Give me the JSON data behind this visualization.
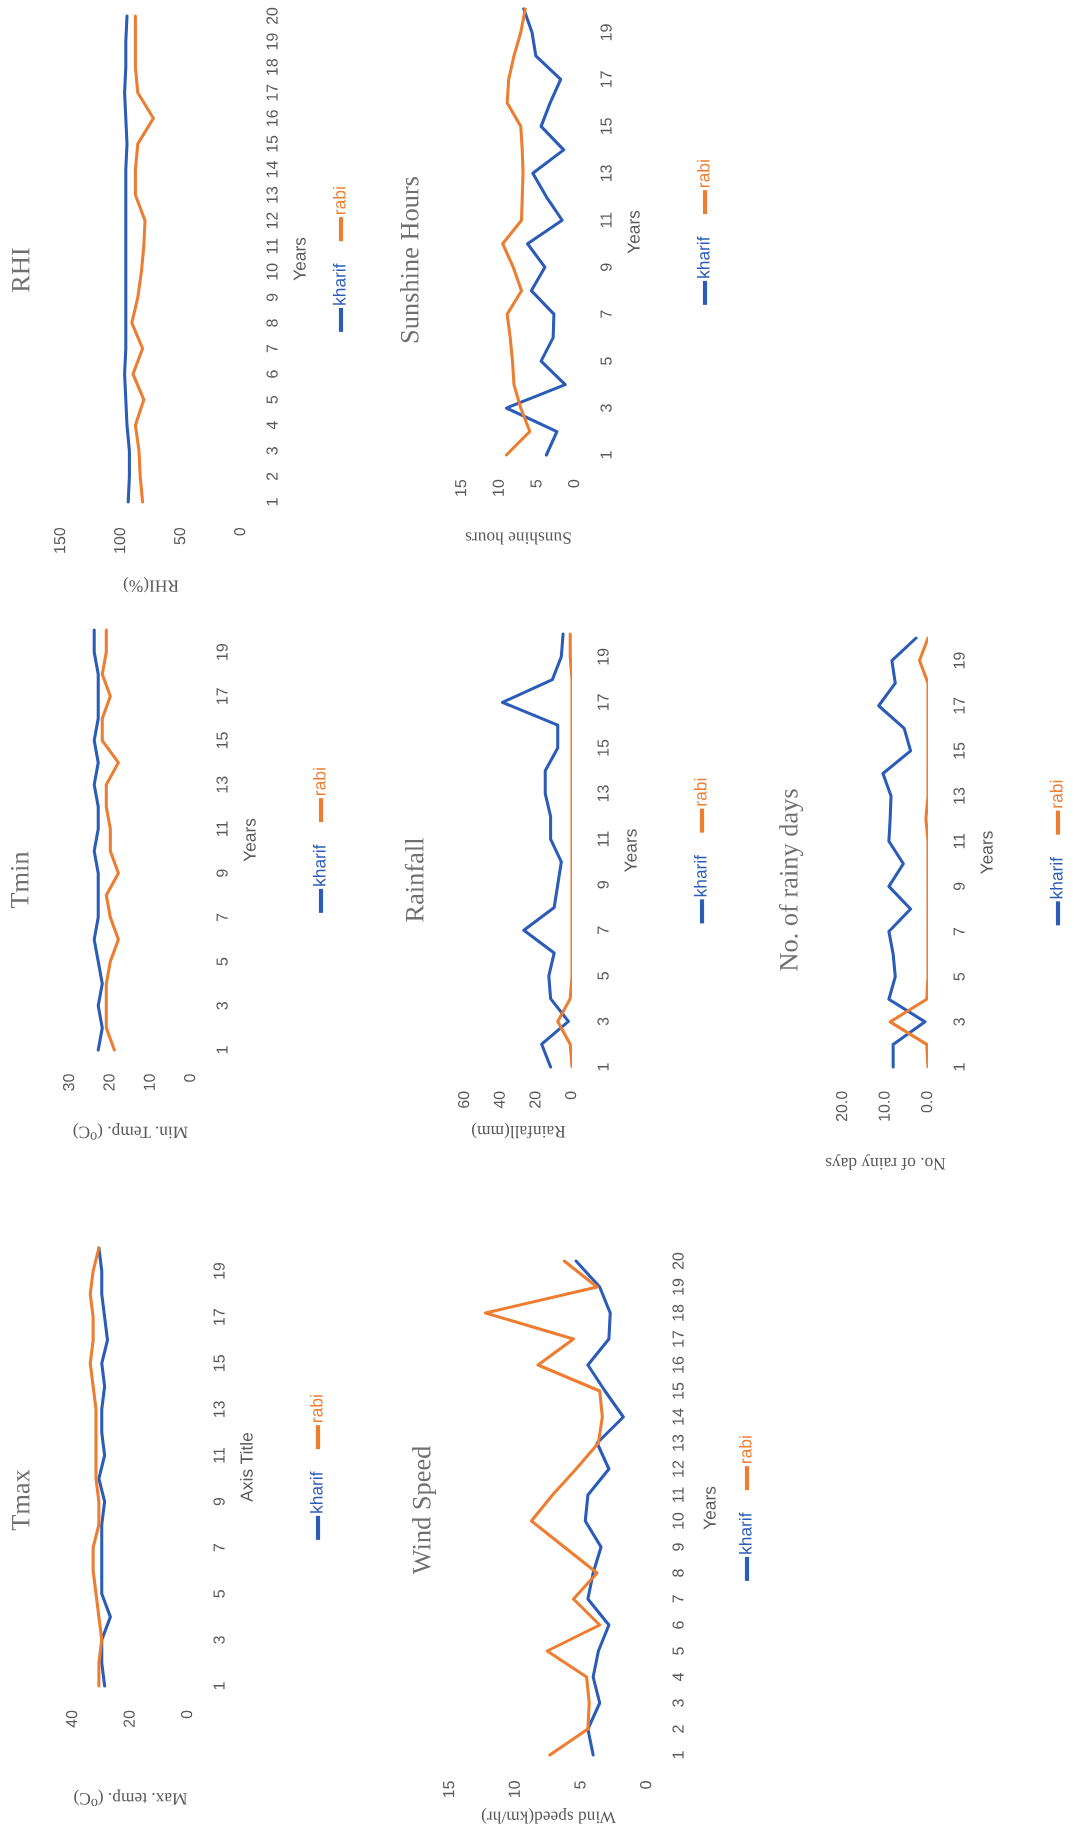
{
  "chart_data": [
    {
      "type": "line",
      "orientation": "horizontal",
      "title": "RHI",
      "ylabel": "Years",
      "xlabel": "RHI(%)",
      "legend": "right",
      "grid": false,
      "categories": [
        "20",
        "19",
        "18",
        "17",
        "16",
        "15",
        "14",
        "13",
        "12",
        "11",
        "10",
        "9",
        "8",
        "7",
        "6",
        "5",
        "4",
        "3",
        "2",
        "1"
      ],
      "xlim": [
        150,
        0
      ],
      "xticks": [
        0,
        50,
        100,
        150
      ],
      "series": [
        {
          "name": "kharif",
          "color": "#2b5cb8",
          "values": [
            95,
            96,
            96,
            97,
            96,
            95,
            96,
            96,
            96,
            96,
            96,
            96,
            96,
            96,
            97,
            96,
            95,
            93,
            93,
            94
          ]
        },
        {
          "name": "rabi",
          "color": "#ed7d31",
          "values": [
            88,
            88,
            88,
            86,
            73,
            86,
            88,
            88,
            80,
            81,
            83,
            86,
            91,
            82,
            90,
            81,
            88,
            85,
            84,
            82
          ]
        }
      ]
    },
    {
      "type": "line",
      "orientation": "horizontal",
      "title": "Sunshine Hours",
      "ylabel": "Years",
      "xlabel": "Sunshine hours",
      "legend": "right",
      "grid": false,
      "categories": [
        null,
        "19",
        null,
        "17",
        null,
        "15",
        null,
        "13",
        null,
        "11",
        null,
        "9",
        null,
        "7",
        null,
        "5",
        null,
        "3",
        null,
        "1"
      ],
      "xlim": [
        15,
        0
      ],
      "xticks": [
        0,
        5,
        10,
        15
      ],
      "series": [
        {
          "name": "kharif",
          "color": "#2b5cb8",
          "values": [
            6.8,
            5.7,
            5.2,
            1.9,
            3.3,
            4.5,
            1.5,
            5.6,
            3.8,
            1.7,
            6.3,
            4.0,
            5.8,
            2.8,
            2.9,
            4.5,
            1.3,
            9.1,
            2.4,
            3.8
          ]
        },
        {
          "name": "rabi",
          "color": "#ed7d31",
          "values": [
            6.6,
            7.2,
            8.1,
            8.8,
            9.0,
            7.2,
            7.0,
            6.9,
            7.0,
            7.1,
            9.6,
            8.2,
            7.1,
            9.0,
            8.6,
            8.3,
            8.1,
            7.2,
            6.0,
            9.1
          ]
        }
      ]
    },
    {
      "type": "line",
      "orientation": "horizontal",
      "title": "Tmin",
      "ylabel": "Years",
      "xlabel": "Min. Temp. (⁰C)",
      "legend": "right",
      "grid": false,
      "categories": [
        null,
        "19",
        null,
        "17",
        null,
        "15",
        null,
        "13",
        null,
        "11",
        null,
        "9",
        null,
        "7",
        null,
        "5",
        null,
        "3",
        null,
        "1"
      ],
      "xlim": [
        30,
        0
      ],
      "xticks": [
        0,
        10,
        20,
        30
      ],
      "series": [
        {
          "name": "kharif",
          "color": "#2b5cb8",
          "values": [
            24,
            24,
            23,
            23,
            23,
            24,
            23,
            24,
            23,
            23,
            24,
            23,
            23,
            23,
            24,
            23,
            22,
            23,
            22,
            23
          ]
        },
        {
          "name": "rabi",
          "color": "#ed7d31",
          "values": [
            21,
            21,
            22,
            20,
            22,
            22,
            18,
            21,
            21,
            20,
            20,
            18,
            21,
            20,
            18,
            20,
            21,
            21,
            21,
            19
          ]
        }
      ]
    },
    {
      "type": "line",
      "orientation": "horizontal",
      "title": "Rainfall",
      "ylabel": "Years",
      "xlabel": "Rainfall(mm)",
      "legend": "right",
      "grid": false,
      "categories": [
        null,
        "19",
        null,
        "17",
        null,
        "15",
        null,
        "13",
        null,
        "11",
        null,
        "9",
        null,
        "7",
        null,
        "5",
        null,
        "3",
        null,
        "1"
      ],
      "xlim": [
        60,
        0
      ],
      "xticks": [
        0,
        20,
        40,
        60
      ],
      "series": [
        {
          "name": "kharif",
          "color": "#2b5cb8",
          "values": [
            5,
            6,
            11,
            39,
            8,
            8,
            15,
            15,
            12,
            12,
            6,
            8,
            10,
            27,
            10,
            13,
            12,
            2,
            17,
            12
          ]
        },
        {
          "name": "rabi",
          "color": "#ed7d31",
          "values": [
            1,
            1,
            0,
            0,
            0,
            0,
            0,
            0,
            0,
            0,
            0,
            0,
            0,
            0,
            0,
            0,
            1,
            8,
            1,
            0
          ]
        }
      ]
    },
    {
      "type": "line",
      "orientation": "horizontal",
      "title": "No. of rainy days",
      "ylabel": "Years",
      "xlabel": "No. of rainy days",
      "legend": "right",
      "grid": false,
      "categories": [
        null,
        "19",
        null,
        "17",
        null,
        "15",
        null,
        "13",
        null,
        "11",
        null,
        "9",
        null,
        "7",
        null,
        "5",
        null,
        "3",
        null,
        "1"
      ],
      "xlim": [
        20,
        0
      ],
      "xticks": [
        {
          "value": 0,
          "label": "0.0"
        },
        {
          "value": 10,
          "label": "10.0"
        },
        {
          "value": 20,
          "label": "20.0"
        }
      ],
      "series": [
        {
          "name": "kharif",
          "color": "#2b5cb8",
          "values": [
            2.8,
            8.5,
            7.7,
            11.6,
            5.6,
            4.1,
            10.6,
            8.7,
            8.9,
            9.2,
            5.8,
            9.2,
            4.1,
            9.2,
            8.2,
            7.7,
            9.2,
            0.7,
            8.2,
            8.2
          ]
        },
        {
          "name": "rabi",
          "color": "#ed7d31",
          "values": [
            0,
            2,
            0,
            0,
            0,
            0,
            0,
            0,
            0.5,
            0,
            0,
            0,
            0,
            0,
            0,
            0,
            0.3,
            8.9,
            0.3,
            0
          ]
        }
      ]
    },
    {
      "type": "line",
      "orientation": "horizontal",
      "title": "Tmax",
      "ylabel": "Axis Title",
      "xlabel": "Max. temp. (⁰C)",
      "legend": "right",
      "grid": false,
      "categories": [
        null,
        "19",
        null,
        "17",
        null,
        "15",
        null,
        "13",
        null,
        "11",
        null,
        "9",
        null,
        "7",
        null,
        "5",
        null,
        "3",
        null,
        "1"
      ],
      "xlim": [
        40,
        0
      ],
      "xticks": [
        0,
        20,
        40
      ],
      "series": [
        {
          "name": "kharif",
          "color": "#2b5cb8",
          "values": [
            31,
            30,
            30,
            29,
            28,
            30,
            29,
            30,
            30,
            29,
            31,
            29,
            30,
            30,
            30,
            30,
            27,
            30,
            30,
            29
          ]
        },
        {
          "name": "rabi",
          "color": "#ed7d31",
          "values": [
            31,
            33,
            34,
            33,
            33,
            34,
            33,
            32,
            32,
            32,
            32,
            31,
            31,
            33,
            33,
            32,
            31,
            30,
            31,
            31
          ]
        }
      ]
    },
    {
      "type": "line",
      "orientation": "horizontal",
      "title": "Wind Speed",
      "ylabel": "Years",
      "xlabel": "Wind speed(km/hr)",
      "legend": "right",
      "grid": false,
      "categories": [
        "20",
        "19",
        "18",
        "17",
        "16",
        "15",
        "14",
        "13",
        "12",
        "11",
        "10",
        "9",
        "8",
        "7",
        "6",
        "5",
        "4",
        "3",
        "2",
        "1"
      ],
      "xlim": [
        15,
        0
      ],
      "xticks": [
        0,
        5,
        10,
        15
      ],
      "series": [
        {
          "name": "kharif",
          "color": "#2b5cb8",
          "values": [
            5.4,
            3.6,
            2.8,
            2.9,
            4.5,
            3.2,
            1.8,
            3.8,
            2.9,
            4.5,
            4.7,
            3.5,
            4.1,
            4.5,
            2.9,
            3.7,
            4.1,
            3.6,
            4.5,
            4.1
          ]
        },
        {
          "name": "rabi",
          "color": "#ed7d31",
          "values": [
            6.3,
            3.8,
            12.3,
            5.6,
            8.3,
            3.6,
            3.4,
            3.7,
            5.4,
            7.2,
            8.8,
            6.3,
            3.8,
            5.6,
            3.6,
            7.6,
            4.6,
            4.4,
            4.5,
            7.4
          ]
        }
      ]
    }
  ]
}
